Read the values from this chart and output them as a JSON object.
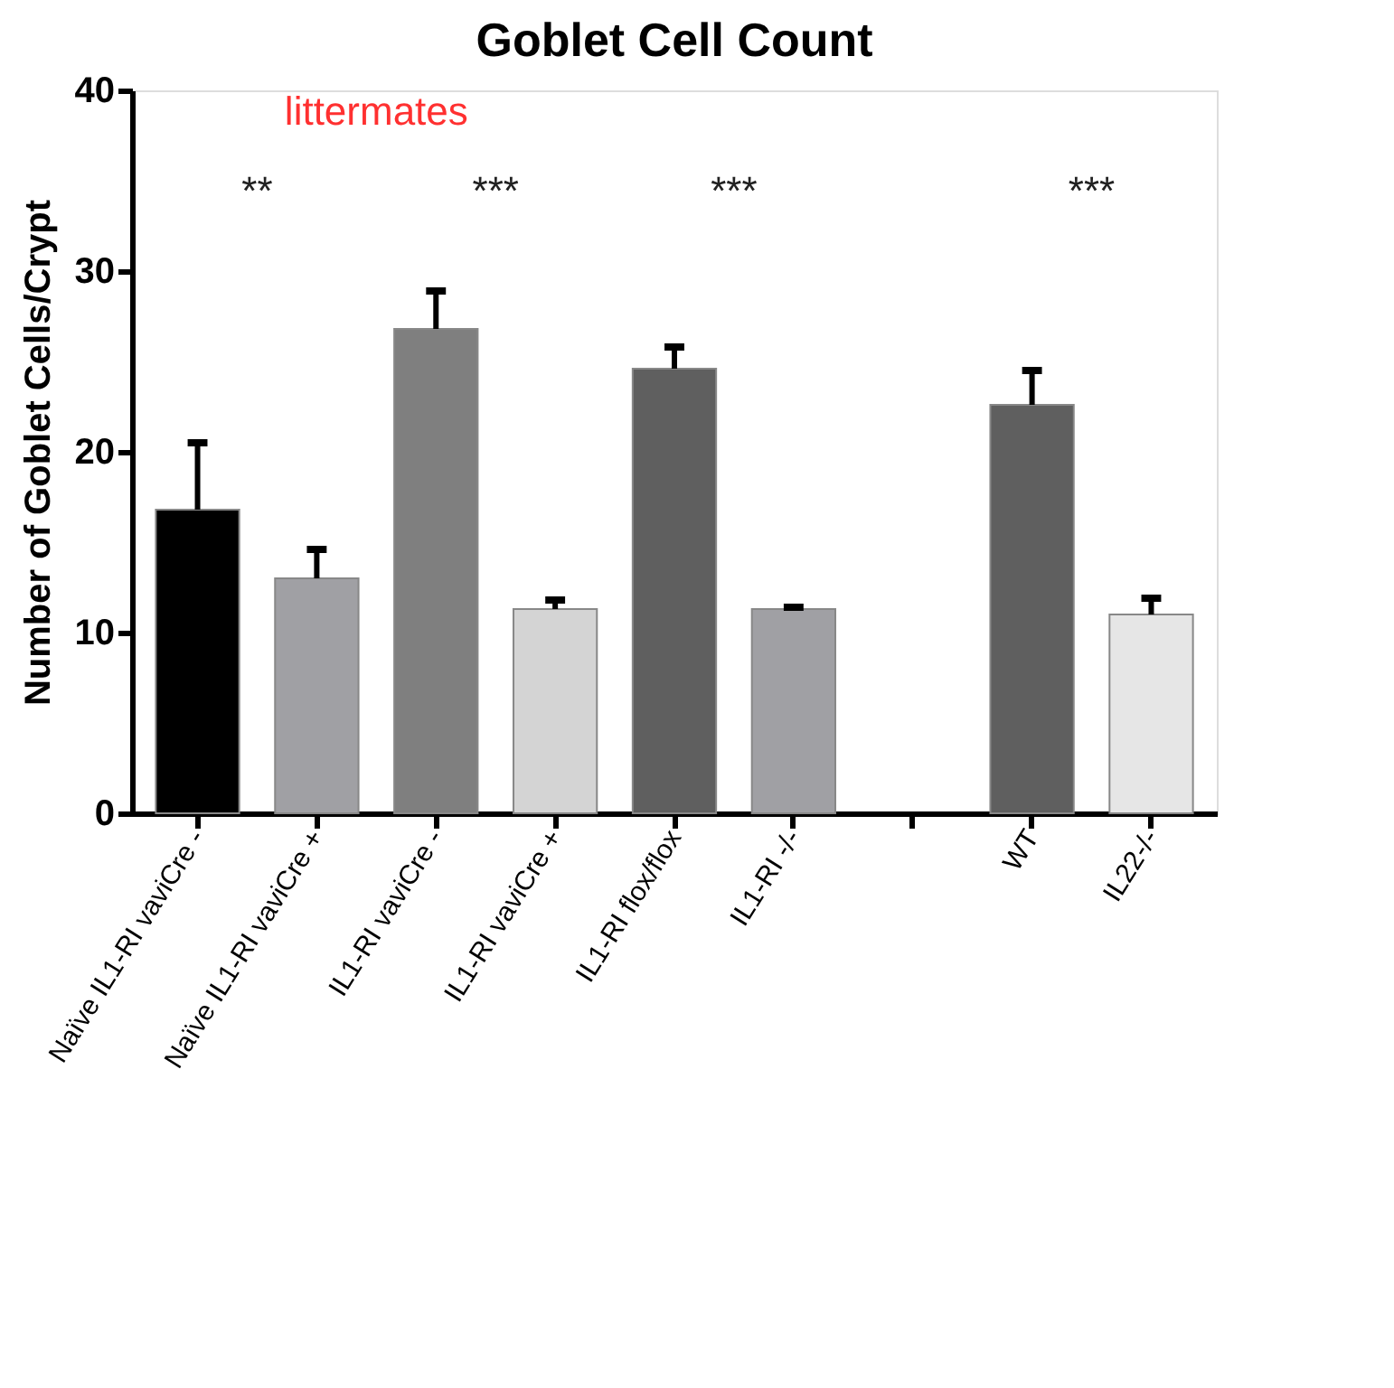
{
  "chart_data": {
    "type": "bar",
    "title": "Goblet Cell Count",
    "ylabel": "Number of Goblet Cells/Crypt",
    "categories": [
      "Naïve IL1-RI vaviCre -",
      "Naïve IL1-RI vaviCre +",
      "IL1-RI vaviCre -",
      "IL1-RI vaviCre +",
      "IL1-RI flox/flox",
      "IL1-RI -/-",
      null,
      "WT",
      "IL22-/-"
    ],
    "values": [
      16.8,
      13.0,
      26.8,
      11.3,
      24.6,
      11.3,
      null,
      22.6,
      11.0
    ],
    "colors": [
      "#000000",
      "#a0a0a4",
      "#7f7f7f",
      "#d4d4d4",
      "#5f5f5f",
      "#a0a0a4",
      "#ffffff",
      "#5f5f5f",
      "#e6e6e6"
    ],
    "errors": [
      [
        16.8,
        20.5
      ],
      [
        13.0,
        14.6
      ],
      [
        26.8,
        28.9
      ],
      [
        11.3,
        11.8
      ],
      [
        24.6,
        25.8
      ],
      [
        11.3,
        11.4
      ],
      null,
      [
        22.6,
        24.5
      ],
      [
        11.0,
        11.9
      ]
    ],
    "ylim": [
      0,
      40
    ],
    "yticks": [
      0,
      10,
      20,
      30,
      40
    ],
    "grid": false,
    "annotations": [
      "littermates",
      "**",
      "***",
      "***",
      "***"
    ]
  }
}
